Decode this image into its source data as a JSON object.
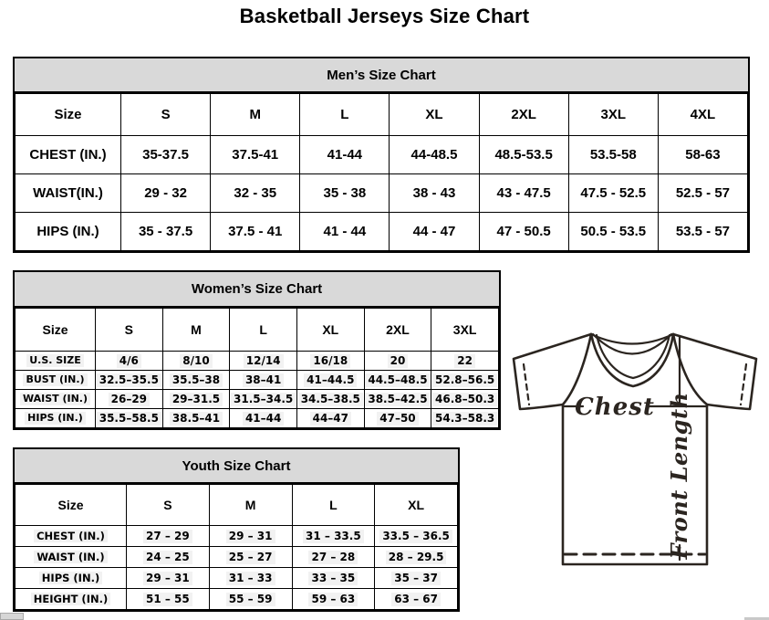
{
  "page_title": "Basketball Jerseys Size Chart",
  "tables": {
    "men": {
      "title": "Men’s Size Chart",
      "header": [
        "Size",
        "S",
        "M",
        "L",
        "XL",
        "2XL",
        "3XL",
        "4XL"
      ],
      "rows": [
        {
          "label": "CHEST (IN.)",
          "values": [
            "35-37.5",
            "37.5-41",
            "41-44",
            "44-48.5",
            "48.5-53.5",
            "53.5-58",
            "58-63"
          ]
        },
        {
          "label": "WAIST(IN.)",
          "values": [
            "29 - 32",
            "32 - 35",
            "35 - 38",
            "38 - 43",
            "43 - 47.5",
            "47.5 - 52.5",
            "52.5 - 57"
          ]
        },
        {
          "label": "HIPS (IN.)",
          "values": [
            "35 - 37.5",
            "37.5 - 41",
            "41 - 44",
            "44 - 47",
            "47 - 50.5",
            "50.5 - 53.5",
            "53.5 - 57"
          ]
        }
      ]
    },
    "women": {
      "title": "Women’s Size Chart",
      "header": [
        "Size",
        "S",
        "M",
        "L",
        "XL",
        "2XL",
        "3XL"
      ],
      "rows": [
        {
          "label": "U.S. SIZE",
          "values": [
            "4/6",
            "8/10",
            "12/14",
            "16/18",
            "20",
            "22"
          ]
        },
        {
          "label": "BUST (IN.)",
          "values": [
            "32.5–35.5",
            "35.5–38",
            "38–41",
            "41–44.5",
            "44.5–48.5",
            "52.8–56.5"
          ]
        },
        {
          "label": "WAIST (IN.)",
          "values": [
            "26–29",
            "29–31.5",
            "31.5–34.5",
            "34.5–38.5",
            "38.5–42.5",
            "46.8–50.3"
          ]
        },
        {
          "label": "HIPS (IN.)",
          "values": [
            "35.5–58.5",
            "38.5–41",
            "41–44",
            "44–47",
            "47–50",
            "54.3–58.3"
          ]
        }
      ]
    },
    "youth": {
      "title": "Youth Size Chart",
      "header": [
        "Size",
        "S",
        "M",
        "L",
        "XL"
      ],
      "rows": [
        {
          "label": "CHEST (IN.)",
          "values": [
            "27 – 29",
            "29 – 31",
            "31 – 33.5",
            "33.5 – 36.5"
          ]
        },
        {
          "label": "WAIST (IN.)",
          "values": [
            "24 – 25",
            "25 – 27",
            "27 – 28",
            "28 – 29.5"
          ]
        },
        {
          "label": "HIPS (IN.)",
          "values": [
            "29 – 31",
            "31 – 33",
            "33 – 35",
            "35 – 37"
          ]
        },
        {
          "label": "HEIGHT (IN.)",
          "values": [
            "51 – 55",
            "55 – 59",
            "59 – 63",
            "63 – 67"
          ]
        }
      ]
    }
  },
  "diagram": {
    "chest_label": "Chest",
    "front_length_label": "Front Length"
  },
  "colors": {
    "header_bg": "#d9d9d9",
    "grid_border": "#000000",
    "diagram_stroke": "#2b2520",
    "cell_highlight": "#f2f2f2"
  }
}
